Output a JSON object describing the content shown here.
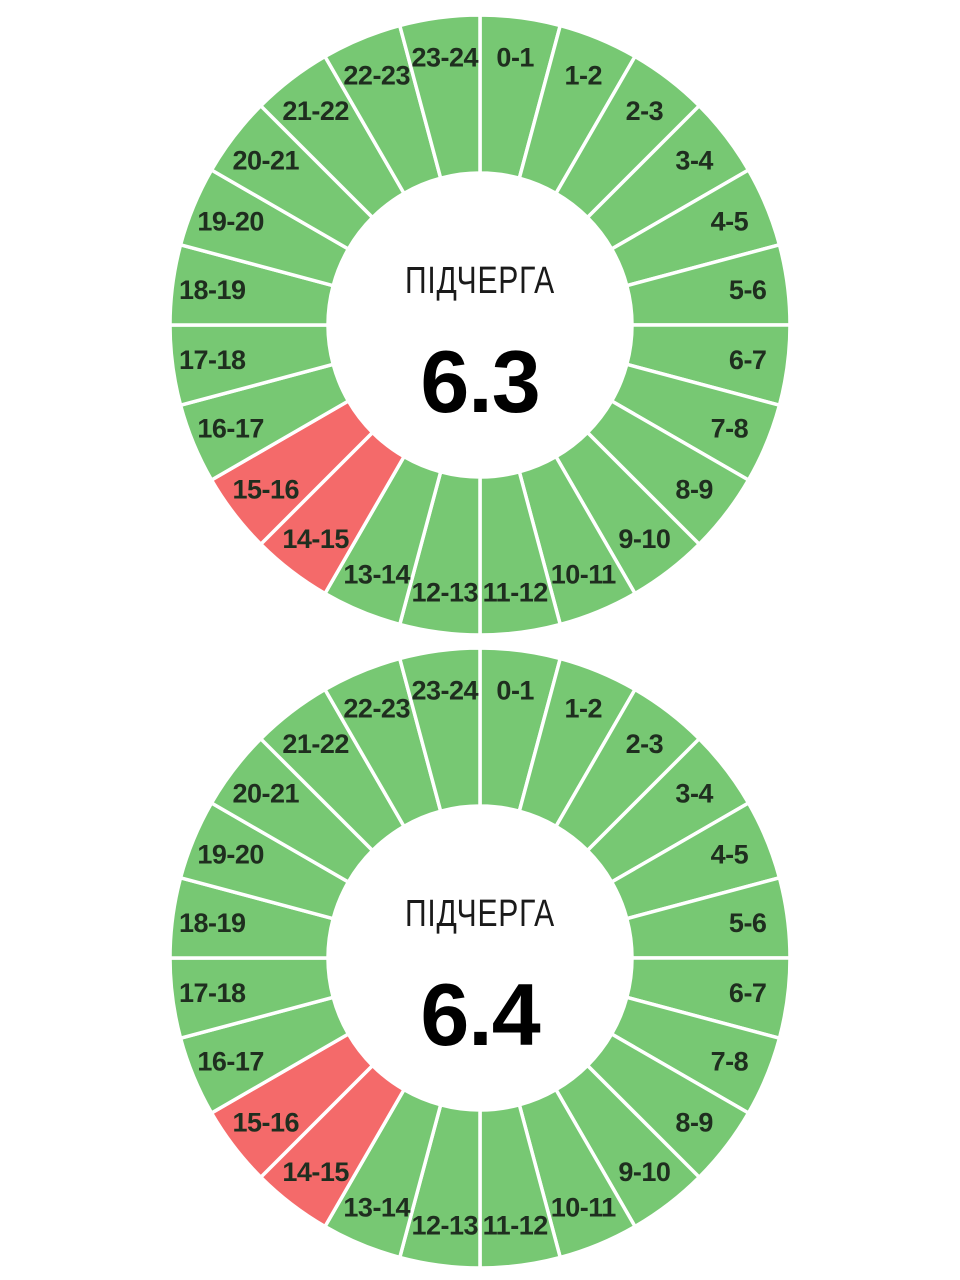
{
  "page": {
    "background": "#ffffff",
    "description": "Two 24-hour donut clock charts of power outage sub-queue schedules"
  },
  "style": {
    "segment_on_color": "#77c873",
    "segment_off_color": "#f46a6a",
    "divider_color": "#ffffff",
    "label_color": "#1f2e1f",
    "center_title_color": "#1a1a1a",
    "center_value_color": "#000000"
  },
  "chart_data": [
    {
      "type": "pie",
      "subtype": "donut-clock",
      "center_title": "ПІДЧЕРГА",
      "center_value": "6.3",
      "categories": [
        "0-1",
        "1-2",
        "2-3",
        "3-4",
        "4-5",
        "5-6",
        "6-7",
        "7-8",
        "8-9",
        "9-10",
        "10-11",
        "11-12",
        "12-13",
        "13-14",
        "14-15",
        "15-16",
        "16-17",
        "17-18",
        "18-19",
        "19-20",
        "20-21",
        "21-22",
        "22-23",
        "23-24"
      ],
      "values": [
        1,
        1,
        1,
        1,
        1,
        1,
        1,
        1,
        1,
        1,
        1,
        1,
        1,
        1,
        1,
        1,
        1,
        1,
        1,
        1,
        1,
        1,
        1,
        1
      ],
      "segment_status": [
        "on",
        "on",
        "on",
        "on",
        "on",
        "on",
        "on",
        "on",
        "on",
        "on",
        "on",
        "on",
        "on",
        "on",
        "off",
        "off",
        "on",
        "on",
        "on",
        "on",
        "on",
        "on",
        "on",
        "on"
      ],
      "off_segments": [
        "14-15",
        "15-16"
      ],
      "legend": "none",
      "start": "0-1 at 12 o'clock, clockwise"
    },
    {
      "type": "pie",
      "subtype": "donut-clock",
      "center_title": "ПІДЧЕРГА",
      "center_value": "6.4",
      "categories": [
        "0-1",
        "1-2",
        "2-3",
        "3-4",
        "4-5",
        "5-6",
        "6-7",
        "7-8",
        "8-9",
        "9-10",
        "10-11",
        "11-12",
        "12-13",
        "13-14",
        "14-15",
        "15-16",
        "16-17",
        "17-18",
        "18-19",
        "19-20",
        "20-21",
        "21-22",
        "22-23",
        "23-24"
      ],
      "values": [
        1,
        1,
        1,
        1,
        1,
        1,
        1,
        1,
        1,
        1,
        1,
        1,
        1,
        1,
        1,
        1,
        1,
        1,
        1,
        1,
        1,
        1,
        1,
        1
      ],
      "segment_status": [
        "on",
        "on",
        "on",
        "on",
        "on",
        "on",
        "on",
        "on",
        "on",
        "on",
        "on",
        "on",
        "on",
        "on",
        "off",
        "off",
        "on",
        "on",
        "on",
        "on",
        "on",
        "on",
        "on",
        "on"
      ],
      "off_segments": [
        "14-15",
        "15-16"
      ],
      "legend": "none",
      "start": "0-1 at 12 o'clock, clockwise"
    }
  ]
}
